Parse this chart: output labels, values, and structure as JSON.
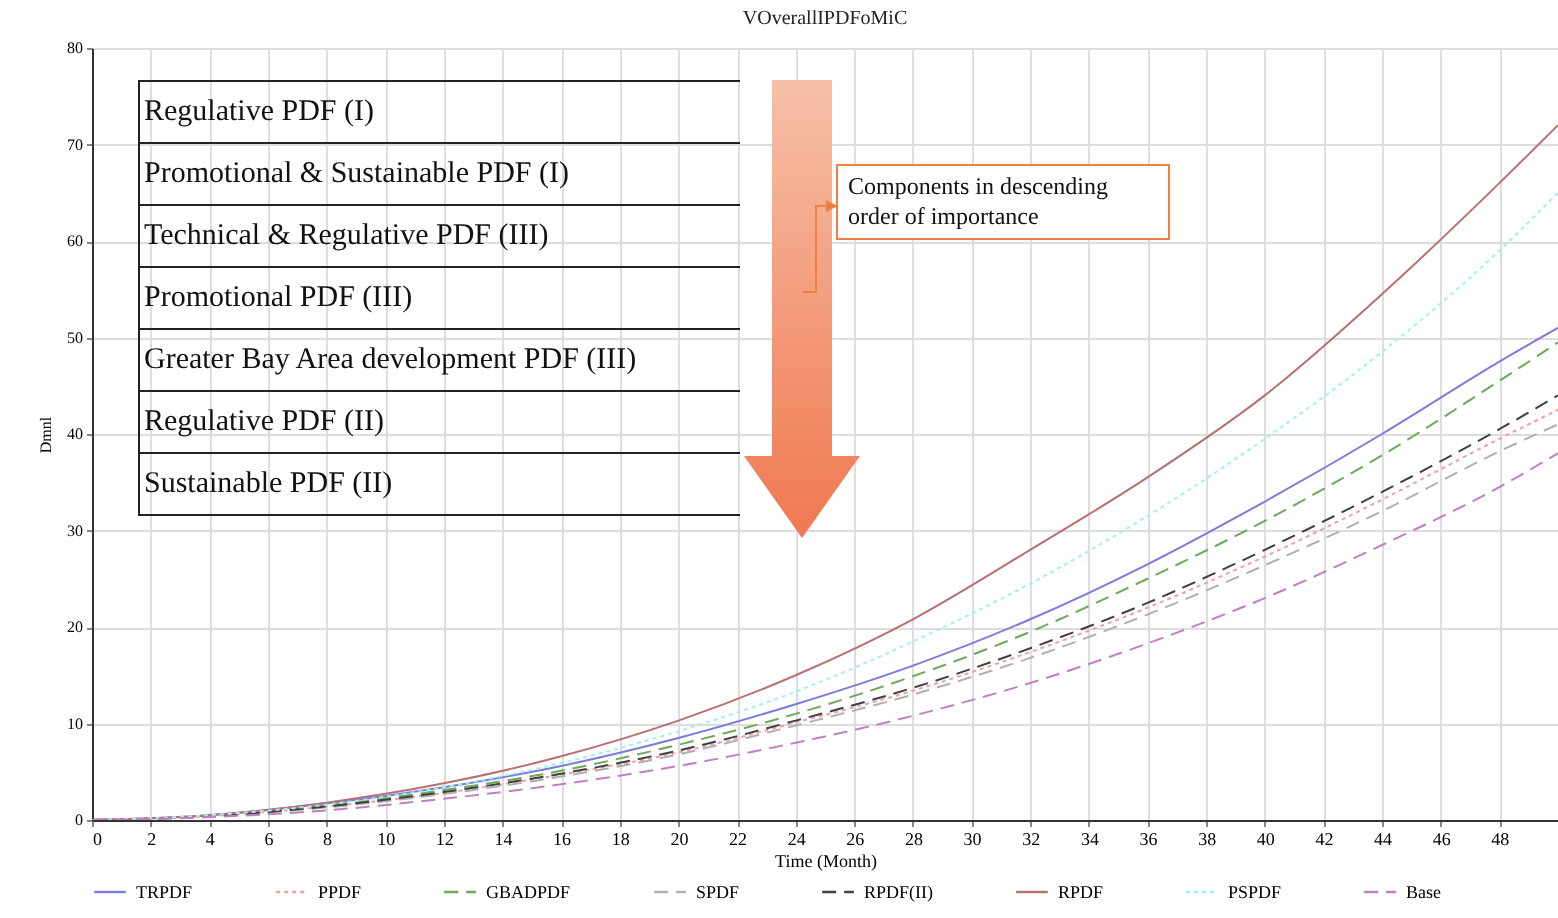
{
  "chart_data": {
    "type": "line",
    "title": "VOverallIPDFoMiC",
    "xlabel": "Time (Month)",
    "ylabel": "Dmnl",
    "x": [
      0,
      4,
      8,
      12,
      16,
      20,
      24,
      28,
      32,
      36,
      40,
      44,
      48,
      50
    ],
    "series": [
      {
        "name": "TRPDF",
        "color": "#7b7bdc",
        "line_style": "solid",
        "values": [
          0,
          0.5,
          1.7,
          3.4,
          5.6,
          8.5,
          12,
          16,
          20.8,
          26.5,
          33,
          40,
          47.5,
          51
        ]
      },
      {
        "name": "PPDF",
        "color": "#f0a0a0",
        "line_style": "dotted",
        "values": [
          0,
          0.4,
          1.4,
          2.8,
          4.7,
          7,
          10.1,
          13.4,
          17.4,
          22,
          27.3,
          33.2,
          39.5,
          42.5
        ]
      },
      {
        "name": "GBADPDF",
        "color": "#6aaa5a",
        "line_style": "dashed",
        "values": [
          0,
          0.4,
          1.5,
          3.1,
          5.1,
          7.8,
          11,
          14.9,
          19.5,
          25,
          31,
          37.8,
          45.5,
          49.5
        ]
      },
      {
        "name": "SPDF",
        "color": "#b0b0b0",
        "line_style": "dashed",
        "values": [
          0,
          0.4,
          1.3,
          2.7,
          4.5,
          6.8,
          9.8,
          13,
          16.8,
          21.3,
          26.4,
          32,
          38.2,
          41
        ]
      },
      {
        "name": "RPDF(II)",
        "color": "#404040",
        "line_style": "dashed",
        "values": [
          0,
          0.4,
          1.4,
          2.9,
          4.8,
          7.2,
          10.3,
          13.7,
          17.8,
          22.5,
          28,
          34,
          40.5,
          44
        ]
      },
      {
        "name": "RPDF",
        "color": "#b87070",
        "line_style": "solid",
        "values": [
          0,
          0.5,
          1.8,
          3.8,
          6.6,
          10.3,
          15,
          20.8,
          28,
          35.5,
          44,
          54.5,
          66,
          72
        ]
      },
      {
        "name": "PSPDF",
        "color": "#a0f0f0",
        "line_style": "dotted",
        "values": [
          0,
          0.5,
          1.6,
          3.4,
          5.9,
          9.2,
          13.3,
          18.5,
          24.5,
          31.5,
          39.5,
          48.5,
          59,
          65
        ]
      },
      {
        "name": "Base",
        "color": "#c080c0",
        "line_style": "dashed",
        "values": [
          0,
          0.3,
          1,
          2.2,
          3.7,
          5.6,
          8,
          10.8,
          14.2,
          18.3,
          23,
          28.5,
          34.5,
          38
        ]
      }
    ],
    "xlim": [
      0,
      50
    ],
    "ylim": [
      0,
      80
    ],
    "xticks": [
      0,
      2,
      4,
      6,
      8,
      10,
      12,
      14,
      16,
      18,
      20,
      22,
      24,
      26,
      28,
      30,
      32,
      34,
      36,
      38,
      40,
      42,
      44,
      46,
      48
    ],
    "yticks": [
      0,
      10,
      20,
      30,
      40,
      50,
      60,
      70,
      80
    ],
    "grid": true,
    "legend": "bottom",
    "annotations": [
      "Regulative PDF (I)",
      "Promotional & Sustainable PDF (I)",
      "Technical & Regulative PDF (III)",
      "Promotional PDF (III)",
      "Greater Bay Area development PDF (III)",
      "Regulative PDF (II)",
      "Sustainable PDF (II)",
      "Components in descending order of importance"
    ]
  }
}
